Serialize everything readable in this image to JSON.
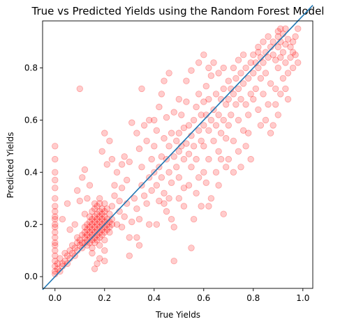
{
  "chart_data": {
    "type": "scatter",
    "title": "True vs Predicted Yields using the Random Forest Model",
    "xlabel": "True Yields",
    "ylabel": "Predicted Yields",
    "xlim": [
      -0.05,
      1.04
    ],
    "ylim": [
      -0.045,
      0.98
    ],
    "xticks": [
      0.0,
      0.2,
      0.4,
      0.6,
      0.8,
      1.0
    ],
    "yticks": [
      0.0,
      0.2,
      0.4,
      0.6,
      0.8
    ],
    "xtick_labels": [
      "0.0",
      "0.2",
      "0.4",
      "0.6",
      "0.8",
      "1.0"
    ],
    "ytick_labels": [
      "0.0",
      "0.2",
      "0.4",
      "0.6",
      "0.8"
    ],
    "grid": false,
    "legend": "none",
    "point_color": "#ff0000",
    "point_alpha": 0.2,
    "line_color": "#1f77b4",
    "reference_line": {
      "x": [
        -0.05,
        1.04
      ],
      "y": [
        -0.05,
        1.04
      ]
    },
    "points": [
      [
        0.0,
        0.5
      ],
      [
        0.0,
        0.45
      ],
      [
        0.0,
        0.4
      ],
      [
        0.0,
        0.37
      ],
      [
        0.0,
        0.34
      ],
      [
        0.0,
        0.3
      ],
      [
        0.0,
        0.27
      ],
      [
        0.0,
        0.25
      ],
      [
        0.0,
        0.23
      ],
      [
        0.0,
        0.22
      ],
      [
        0.0,
        0.2
      ],
      [
        0.0,
        0.19
      ],
      [
        0.0,
        0.17
      ],
      [
        0.0,
        0.15
      ],
      [
        0.0,
        0.13
      ],
      [
        0.0,
        0.12
      ],
      [
        0.0,
        0.1
      ],
      [
        0.0,
        0.08
      ],
      [
        0.0,
        0.06
      ],
      [
        0.0,
        0.04
      ],
      [
        0.0,
        0.02
      ],
      [
        0.0,
        0.01
      ],
      [
        0.01,
        0.05
      ],
      [
        0.01,
        0.03
      ],
      [
        0.02,
        0.07
      ],
      [
        0.02,
        0.02
      ],
      [
        0.03,
        0.05
      ],
      [
        0.03,
        0.04
      ],
      [
        0.04,
        0.09
      ],
      [
        0.04,
        0.06
      ],
      [
        0.05,
        0.05
      ],
      [
        0.05,
        0.08
      ],
      [
        0.06,
        0.1
      ],
      [
        0.06,
        0.07
      ],
      [
        0.07,
        0.12
      ],
      [
        0.07,
        0.09
      ],
      [
        0.08,
        0.11
      ],
      [
        0.08,
        0.08
      ],
      [
        0.09,
        0.13
      ],
      [
        0.09,
        0.1
      ],
      [
        0.09,
        0.15
      ],
      [
        0.03,
        0.22
      ],
      [
        0.05,
        0.28
      ],
      [
        0.06,
        0.18
      ],
      [
        0.08,
        0.2
      ],
      [
        0.1,
        0.72
      ],
      [
        0.09,
        0.33
      ],
      [
        0.1,
        0.29
      ],
      [
        0.11,
        0.38
      ],
      [
        0.12,
        0.41
      ],
      [
        0.12,
        0.24
      ],
      [
        0.13,
        0.3
      ],
      [
        0.14,
        0.35
      ],
      [
        0.1,
        0.14
      ],
      [
        0.1,
        0.12
      ],
      [
        0.11,
        0.16
      ],
      [
        0.11,
        0.13
      ],
      [
        0.11,
        0.11
      ],
      [
        0.12,
        0.15
      ],
      [
        0.12,
        0.13
      ],
      [
        0.12,
        0.17
      ],
      [
        0.12,
        0.19
      ],
      [
        0.13,
        0.14
      ],
      [
        0.13,
        0.16
      ],
      [
        0.13,
        0.18
      ],
      [
        0.13,
        0.12
      ],
      [
        0.13,
        0.2
      ],
      [
        0.14,
        0.15
      ],
      [
        0.14,
        0.17
      ],
      [
        0.14,
        0.19
      ],
      [
        0.14,
        0.21
      ],
      [
        0.14,
        0.13
      ],
      [
        0.14,
        0.23
      ],
      [
        0.15,
        0.16
      ],
      [
        0.15,
        0.18
      ],
      [
        0.15,
        0.2
      ],
      [
        0.15,
        0.14
      ],
      [
        0.15,
        0.22
      ],
      [
        0.15,
        0.25
      ],
      [
        0.15,
        0.11
      ],
      [
        0.16,
        0.17
      ],
      [
        0.16,
        0.19
      ],
      [
        0.16,
        0.21
      ],
      [
        0.16,
        0.15
      ],
      [
        0.16,
        0.23
      ],
      [
        0.16,
        0.26
      ],
      [
        0.16,
        0.13
      ],
      [
        0.16,
        0.28
      ],
      [
        0.17,
        0.18
      ],
      [
        0.17,
        0.2
      ],
      [
        0.17,
        0.22
      ],
      [
        0.17,
        0.16
      ],
      [
        0.17,
        0.24
      ],
      [
        0.17,
        0.27
      ],
      [
        0.17,
        0.14
      ],
      [
        0.18,
        0.19
      ],
      [
        0.18,
        0.21
      ],
      [
        0.18,
        0.23
      ],
      [
        0.18,
        0.17
      ],
      [
        0.18,
        0.25
      ],
      [
        0.18,
        0.28
      ],
      [
        0.18,
        0.15
      ],
      [
        0.18,
        0.3
      ],
      [
        0.18,
        0.12
      ],
      [
        0.19,
        0.2
      ],
      [
        0.19,
        0.22
      ],
      [
        0.19,
        0.18
      ],
      [
        0.19,
        0.24
      ],
      [
        0.19,
        0.26
      ],
      [
        0.19,
        0.16
      ],
      [
        0.2,
        0.21
      ],
      [
        0.2,
        0.19
      ],
      [
        0.2,
        0.23
      ],
      [
        0.2,
        0.17
      ],
      [
        0.2,
        0.25
      ],
      [
        0.2,
        0.28
      ],
      [
        0.2,
        0.14
      ],
      [
        0.21,
        0.2
      ],
      [
        0.21,
        0.22
      ],
      [
        0.21,
        0.18
      ],
      [
        0.21,
        0.26
      ],
      [
        0.22,
        0.21
      ],
      [
        0.22,
        0.19
      ],
      [
        0.22,
        0.24
      ],
      [
        0.22,
        0.17
      ],
      [
        0.23,
        0.22
      ],
      [
        0.23,
        0.2
      ],
      [
        0.23,
        0.27
      ],
      [
        0.17,
        0.05
      ],
      [
        0.18,
        0.07
      ],
      [
        0.15,
        0.09
      ],
      [
        0.2,
        0.1
      ],
      [
        0.16,
        0.03
      ],
      [
        0.2,
        0.06
      ],
      [
        0.2,
        0.55
      ],
      [
        0.22,
        0.52
      ],
      [
        0.21,
        0.43
      ],
      [
        0.19,
        0.48
      ],
      [
        0.23,
        0.45
      ],
      [
        0.24,
        0.35
      ],
      [
        0.25,
        0.4
      ],
      [
        0.24,
        0.31
      ],
      [
        0.26,
        0.29
      ],
      [
        0.27,
        0.34
      ],
      [
        0.26,
        0.25
      ],
      [
        0.25,
        0.2
      ],
      [
        0.27,
        0.19
      ],
      [
        0.28,
        0.23
      ],
      [
        0.29,
        0.28
      ],
      [
        0.3,
        0.44
      ],
      [
        0.31,
        0.21
      ],
      [
        0.3,
        0.15
      ],
      [
        0.32,
        0.3
      ],
      [
        0.29,
        0.37
      ],
      [
        0.27,
        0.43
      ],
      [
        0.28,
        0.46
      ],
      [
        0.33,
        0.26
      ],
      [
        0.34,
        0.22
      ],
      [
        0.35,
        0.35
      ],
      [
        0.34,
        0.49
      ],
      [
        0.36,
        0.31
      ],
      [
        0.35,
        0.42
      ],
      [
        0.37,
        0.52
      ],
      [
        0.35,
        0.72
      ],
      [
        0.38,
        0.38
      ],
      [
        0.38,
        0.6
      ],
      [
        0.36,
        0.58
      ],
      [
        0.37,
        0.28
      ],
      [
        0.39,
        0.45
      ],
      [
        0.39,
        0.33
      ],
      [
        0.31,
        0.59
      ],
      [
        0.33,
        0.55
      ],
      [
        0.33,
        0.15
      ],
      [
        0.3,
        0.08
      ],
      [
        0.34,
        0.12
      ],
      [
        0.38,
        0.2
      ],
      [
        0.4,
        0.4
      ],
      [
        0.4,
        0.5
      ],
      [
        0.41,
        0.35
      ],
      [
        0.41,
        0.56
      ],
      [
        0.42,
        0.42
      ],
      [
        0.42,
        0.29
      ],
      [
        0.43,
        0.46
      ],
      [
        0.43,
        0.38
      ],
      [
        0.44,
        0.53
      ],
      [
        0.44,
        0.32
      ],
      [
        0.45,
        0.45
      ],
      [
        0.45,
        0.61
      ],
      [
        0.46,
        0.4
      ],
      [
        0.46,
        0.5
      ],
      [
        0.47,
        0.36
      ],
      [
        0.47,
        0.55
      ],
      [
        0.48,
        0.46
      ],
      [
        0.48,
        0.63
      ],
      [
        0.49,
        0.42
      ],
      [
        0.49,
        0.52
      ],
      [
        0.4,
        0.6
      ],
      [
        0.42,
        0.65
      ],
      [
        0.43,
        0.7
      ],
      [
        0.44,
        0.75
      ],
      [
        0.44,
        0.28
      ],
      [
        0.45,
        0.25
      ],
      [
        0.46,
        0.3
      ],
      [
        0.47,
        0.22
      ],
      [
        0.48,
        0.19
      ],
      [
        0.48,
        0.06
      ],
      [
        0.46,
        0.78
      ],
      [
        0.41,
        0.2
      ],
      [
        0.5,
        0.48
      ],
      [
        0.5,
        0.55
      ],
      [
        0.5,
        0.38
      ],
      [
        0.51,
        0.5
      ],
      [
        0.51,
        0.62
      ],
      [
        0.52,
        0.45
      ],
      [
        0.52,
        0.57
      ],
      [
        0.52,
        0.34
      ],
      [
        0.53,
        0.51
      ],
      [
        0.53,
        0.67
      ],
      [
        0.54,
        0.47
      ],
      [
        0.54,
        0.58
      ],
      [
        0.55,
        0.42
      ],
      [
        0.55,
        0.54
      ],
      [
        0.56,
        0.6
      ],
      [
        0.56,
        0.5
      ],
      [
        0.57,
        0.65
      ],
      [
        0.57,
        0.45
      ],
      [
        0.58,
        0.56
      ],
      [
        0.58,
        0.7
      ],
      [
        0.59,
        0.52
      ],
      [
        0.59,
        0.62
      ],
      [
        0.5,
        0.3
      ],
      [
        0.52,
        0.27
      ],
      [
        0.54,
        0.35
      ],
      [
        0.55,
        0.11
      ],
      [
        0.56,
        0.22
      ],
      [
        0.57,
        0.32
      ],
      [
        0.58,
        0.38
      ],
      [
        0.59,
        0.27
      ],
      [
        0.53,
        0.75
      ],
      [
        0.55,
        0.79
      ],
      [
        0.58,
        0.82
      ],
      [
        0.5,
        0.68
      ],
      [
        0.6,
        0.58
      ],
      [
        0.6,
        0.67
      ],
      [
        0.6,
        0.5
      ],
      [
        0.61,
        0.62
      ],
      [
        0.61,
        0.73
      ],
      [
        0.62,
        0.56
      ],
      [
        0.62,
        0.68
      ],
      [
        0.62,
        0.45
      ],
      [
        0.63,
        0.6
      ],
      [
        0.63,
        0.77
      ],
      [
        0.64,
        0.64
      ],
      [
        0.64,
        0.52
      ],
      [
        0.65,
        0.7
      ],
      [
        0.65,
        0.58
      ],
      [
        0.66,
        0.62
      ],
      [
        0.66,
        0.48
      ],
      [
        0.67,
        0.68
      ],
      [
        0.67,
        0.55
      ],
      [
        0.68,
        0.72
      ],
      [
        0.68,
        0.6
      ],
      [
        0.69,
        0.66
      ],
      [
        0.69,
        0.53
      ],
      [
        0.6,
        0.4
      ],
      [
        0.61,
        0.36
      ],
      [
        0.62,
        0.27
      ],
      [
        0.63,
        0.3
      ],
      [
        0.65,
        0.4
      ],
      [
        0.66,
        0.35
      ],
      [
        0.67,
        0.45
      ],
      [
        0.68,
        0.24
      ],
      [
        0.69,
        0.42
      ],
      [
        0.6,
        0.85
      ],
      [
        0.62,
        0.8
      ],
      [
        0.64,
        0.82
      ],
      [
        0.66,
        0.78
      ],
      [
        0.68,
        0.8
      ],
      [
        0.7,
        0.68
      ],
      [
        0.7,
        0.75
      ],
      [
        0.7,
        0.58
      ],
      [
        0.71,
        0.72
      ],
      [
        0.71,
        0.62
      ],
      [
        0.72,
        0.7
      ],
      [
        0.72,
        0.8
      ],
      [
        0.72,
        0.52
      ],
      [
        0.73,
        0.66
      ],
      [
        0.73,
        0.76
      ],
      [
        0.74,
        0.72
      ],
      [
        0.74,
        0.6
      ],
      [
        0.75,
        0.78
      ],
      [
        0.75,
        0.68
      ],
      [
        0.76,
        0.74
      ],
      [
        0.76,
        0.56
      ],
      [
        0.77,
        0.8
      ],
      [
        0.77,
        0.66
      ],
      [
        0.78,
        0.76
      ],
      [
        0.78,
        0.62
      ],
      [
        0.79,
        0.82
      ],
      [
        0.79,
        0.7
      ],
      [
        0.7,
        0.45
      ],
      [
        0.72,
        0.4
      ],
      [
        0.74,
        0.48
      ],
      [
        0.75,
        0.42
      ],
      [
        0.77,
        0.5
      ],
      [
        0.78,
        0.55
      ],
      [
        0.79,
        0.45
      ],
      [
        0.76,
        0.85
      ],
      [
        0.74,
        0.83
      ],
      [
        0.8,
        0.78
      ],
      [
        0.8,
        0.85
      ],
      [
        0.8,
        0.68
      ],
      [
        0.81,
        0.82
      ],
      [
        0.81,
        0.72
      ],
      [
        0.82,
        0.8
      ],
      [
        0.82,
        0.86
      ],
      [
        0.82,
        0.64
      ],
      [
        0.83,
        0.76
      ],
      [
        0.83,
        0.84
      ],
      [
        0.84,
        0.82
      ],
      [
        0.84,
        0.7
      ],
      [
        0.85,
        0.86
      ],
      [
        0.85,
        0.78
      ],
      [
        0.86,
        0.84
      ],
      [
        0.86,
        0.66
      ],
      [
        0.87,
        0.88
      ],
      [
        0.87,
        0.74
      ],
      [
        0.88,
        0.85
      ],
      [
        0.88,
        0.58
      ],
      [
        0.89,
        0.83
      ],
      [
        0.89,
        0.72
      ],
      [
        0.9,
        0.88
      ],
      [
        0.9,
        0.92
      ],
      [
        0.9,
        0.8
      ],
      [
        0.91,
        0.9
      ],
      [
        0.91,
        0.84
      ],
      [
        0.92,
        0.86
      ],
      [
        0.92,
        0.93
      ],
      [
        0.92,
        0.76
      ],
      [
        0.93,
        0.89
      ],
      [
        0.93,
        0.82
      ],
      [
        0.94,
        0.91
      ],
      [
        0.94,
        0.78
      ],
      [
        0.95,
        0.88
      ],
      [
        0.95,
        0.84
      ],
      [
        0.96,
        0.9
      ],
      [
        0.96,
        0.8
      ],
      [
        0.97,
        0.85
      ],
      [
        0.97,
        0.92
      ],
      [
        0.98,
        0.95
      ],
      [
        0.98,
        0.82
      ],
      [
        0.96,
        0.86
      ],
      [
        0.84,
        0.9
      ],
      [
        0.86,
        0.92
      ],
      [
        0.88,
        0.9
      ],
      [
        0.9,
        0.94
      ],
      [
        0.91,
        0.95
      ],
      [
        0.93,
        0.95
      ],
      [
        0.82,
        0.88
      ],
      [
        0.85,
        0.6
      ],
      [
        0.87,
        0.55
      ],
      [
        0.89,
        0.66
      ],
      [
        0.91,
        0.7
      ],
      [
        0.93,
        0.72
      ],
      [
        0.94,
        0.68
      ],
      [
        0.9,
        0.62
      ],
      [
        0.83,
        0.58
      ]
    ]
  }
}
